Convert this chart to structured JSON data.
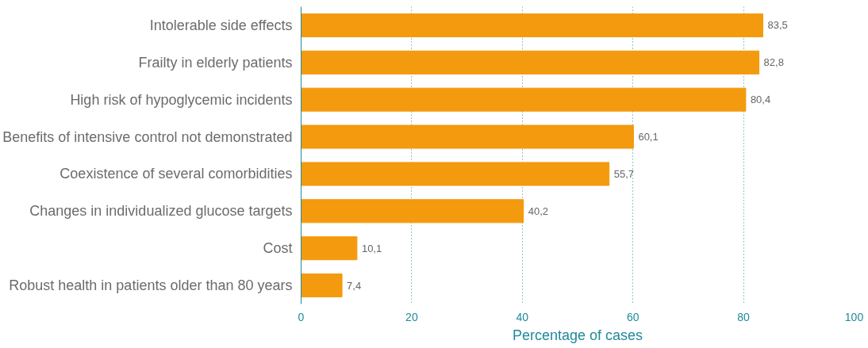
{
  "chart_data": {
    "type": "bar",
    "orientation": "horizontal",
    "xlabel": "Percentage of cases",
    "categories": [
      "Intolerable side effects",
      "Frailty in elderly patients",
      "High risk of hypoglycemic incidents",
      "Benefits of intensive control not demonstrated",
      "Coexistence of several comorbidities",
      "Changes in individualized glucose targets",
      "Cost",
      "Robust health in patients older than 80 years"
    ],
    "values": [
      83.5,
      82.8,
      80.4,
      60.1,
      55.7,
      40.2,
      10.1,
      7.4
    ],
    "value_labels": [
      "83,5",
      "82,8",
      "80,4",
      "60,1",
      "55,7",
      "40,2",
      "10,1",
      "7,4"
    ],
    "color": "#f39a0e",
    "xlim": [
      0,
      100
    ],
    "xticks": [
      0,
      20,
      40,
      60,
      80,
      100
    ],
    "grid": "x"
  }
}
